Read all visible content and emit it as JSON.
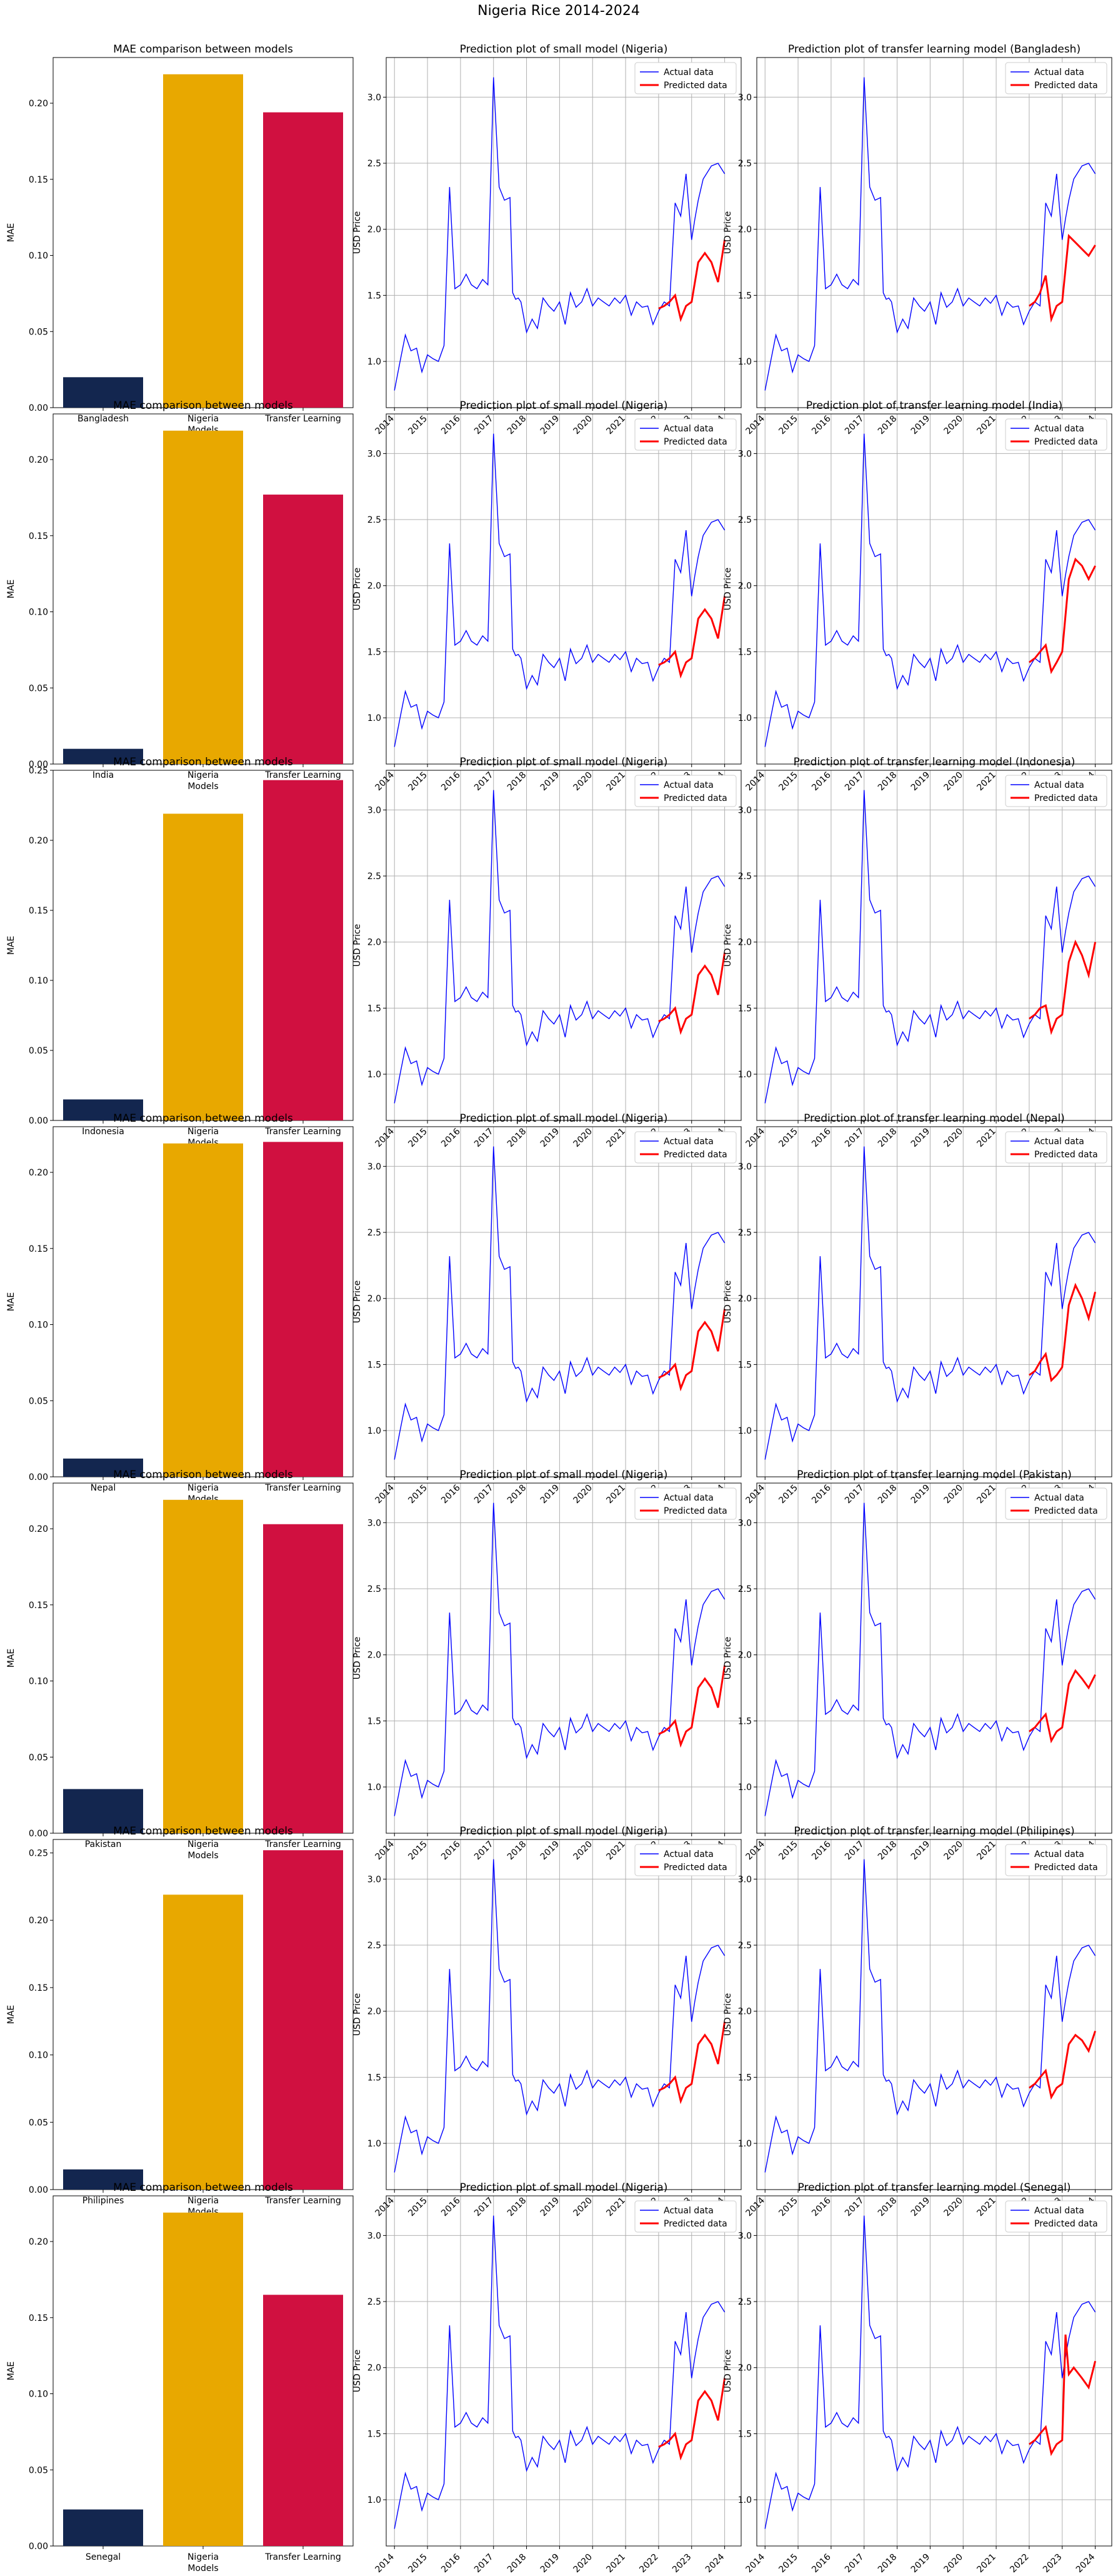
{
  "suptitle": "Nigeria Rice 2014-2024",
  "colors": {
    "bar_country": "#13264f",
    "bar_nigeria": "#e8a800",
    "bar_transfer": "#d01040",
    "actual": "#0000ff",
    "predicted": "#ff0000",
    "grid": "#b0b0b0"
  },
  "labels": {
    "mae_title": "MAE comparison between models",
    "mae_ylabel": "MAE",
    "mae_xlabel": "Models",
    "small_title": "Prediction plot of small model (Nigeria)",
    "tl_title_prefix": "Prediction plot of transfer learning model",
    "ylabel": "USD Price",
    "legend_actual": "Actual data",
    "legend_predicted": "Predicted data"
  },
  "chart_data": {
    "type": "line",
    "years": [
      "2014",
      "2015",
      "2016",
      "2017",
      "2018",
      "2019",
      "2020",
      "2021",
      "2022",
      "2023",
      "2024"
    ],
    "y_ticks": [
      "1.0",
      "1.5",
      "2.0",
      "2.5",
      "3.0"
    ],
    "ylim": [
      0.65,
      3.3
    ],
    "grid": true,
    "legend_position": "top-right",
    "actual": {
      "name": "Actual data",
      "x": [
        2014.0,
        2014.17,
        2014.33,
        2014.5,
        2014.67,
        2014.83,
        2015.0,
        2015.17,
        2015.33,
        2015.5,
        2015.67,
        2015.83,
        2016.0,
        2016.17,
        2016.33,
        2016.5,
        2016.67,
        2016.83,
        2017.0,
        2017.17,
        2017.33,
        2017.5,
        2017.58,
        2017.67,
        2017.75,
        2017.83,
        2018.0,
        2018.17,
        2018.33,
        2018.5,
        2018.67,
        2018.83,
        2019.0,
        2019.17,
        2019.33,
        2019.5,
        2019.67,
        2019.83,
        2020.0,
        2020.17,
        2020.33,
        2020.5,
        2020.67,
        2020.83,
        2021.0,
        2021.17,
        2021.33,
        2021.5,
        2021.67,
        2021.83,
        2022.0,
        2022.17,
        2022.33,
        2022.5,
        2022.67,
        2022.83,
        2023.0,
        2023.1,
        2023.2,
        2023.35,
        2023.6,
        2023.8,
        2024.0
      ],
      "y": [
        0.78,
        1.0,
        1.2,
        1.08,
        1.1,
        0.92,
        1.05,
        1.02,
        1.0,
        1.12,
        2.32,
        1.55,
        1.58,
        1.66,
        1.58,
        1.55,
        1.62,
        1.58,
        3.15,
        2.32,
        2.22,
        2.24,
        1.52,
        1.47,
        1.48,
        1.45,
        1.22,
        1.32,
        1.25,
        1.48,
        1.42,
        1.38,
        1.45,
        1.28,
        1.52,
        1.41,
        1.45,
        1.55,
        1.42,
        1.48,
        1.45,
        1.42,
        1.48,
        1.44,
        1.5,
        1.35,
        1.45,
        1.41,
        1.42,
        1.28,
        1.38,
        1.45,
        1.42,
        2.2,
        2.1,
        2.42,
        1.92,
        2.08,
        2.22,
        2.38,
        2.48,
        2.5,
        2.42
      ]
    },
    "mae_rows": [
      {
        "country": "Bangladesh",
        "tl_title": "Prediction plot of transfer learning model (Bangladesh)",
        "categories": [
          "Bangladesh",
          "Nigeria",
          "Transfer Learning"
        ],
        "values": [
          0.02,
          0.219,
          0.194
        ],
        "ylim": [
          0,
          0.23
        ],
        "yticks": [
          "0.00",
          "0.05",
          "0.10",
          "0.15",
          "0.20"
        ],
        "tl_pred": {
          "x": [
            2022.0,
            2022.17,
            2022.33,
            2022.5,
            2022.67,
            2022.83,
            2023.0,
            2023.2,
            2023.4,
            2023.6,
            2023.8,
            2024.0
          ],
          "y": [
            1.42,
            1.45,
            1.52,
            1.65,
            1.32,
            1.42,
            1.45,
            1.95,
            1.9,
            1.85,
            1.8,
            1.88
          ]
        }
      },
      {
        "country": "India",
        "tl_title": "Prediction plot of transfer learning model (India)",
        "categories": [
          "India",
          "Nigeria",
          "Transfer Learning"
        ],
        "values": [
          0.01,
          0.219,
          0.177
        ],
        "ylim": [
          0,
          0.23
        ],
        "yticks": [
          "0.00",
          "0.05",
          "0.10",
          "0.15",
          "0.20"
        ],
        "tl_pred": {
          "x": [
            2022.0,
            2022.17,
            2022.33,
            2022.5,
            2022.67,
            2022.83,
            2023.0,
            2023.2,
            2023.4,
            2023.6,
            2023.8,
            2024.0
          ],
          "y": [
            1.42,
            1.45,
            1.5,
            1.55,
            1.35,
            1.42,
            1.5,
            2.05,
            2.2,
            2.15,
            2.05,
            2.15
          ]
        }
      },
      {
        "country": "Indonesia",
        "tl_title": "Prediction plot of transfer learning model (Indonesia)",
        "categories": [
          "Indonesia",
          "Nigeria",
          "Transfer Learning"
        ],
        "values": [
          0.015,
          0.219,
          0.243
        ],
        "ylim": [
          0,
          0.25
        ],
        "yticks": [
          "0.00",
          "0.05",
          "0.10",
          "0.15",
          "0.20",
          "0.25"
        ],
        "tl_pred": {
          "x": [
            2022.0,
            2022.17,
            2022.33,
            2022.5,
            2022.67,
            2022.83,
            2023.0,
            2023.2,
            2023.4,
            2023.6,
            2023.8,
            2024.0
          ],
          "y": [
            1.42,
            1.45,
            1.5,
            1.52,
            1.32,
            1.42,
            1.45,
            1.85,
            2.0,
            1.9,
            1.75,
            2.0
          ]
        }
      },
      {
        "country": "Nepal",
        "tl_title": "Prediction plot of transfer learning model (Nepal)",
        "categories": [
          "Nepal",
          "Nigeria",
          "Transfer Learning"
        ],
        "values": [
          0.012,
          0.219,
          0.22
        ],
        "ylim": [
          0,
          0.23
        ],
        "yticks": [
          "0.00",
          "0.05",
          "0.10",
          "0.15",
          "0.20"
        ],
        "tl_pred": {
          "x": [
            2022.0,
            2022.17,
            2022.33,
            2022.5,
            2022.67,
            2022.83,
            2023.0,
            2023.2,
            2023.4,
            2023.6,
            2023.8,
            2024.0
          ],
          "y": [
            1.42,
            1.45,
            1.52,
            1.58,
            1.38,
            1.42,
            1.48,
            1.95,
            2.1,
            2.0,
            1.85,
            2.05
          ]
        }
      },
      {
        "country": "Pakistan",
        "tl_title": "Prediction plot of transfer learning model (Pakistan)",
        "categories": [
          "Pakistan",
          "Nigeria",
          "Transfer Learning"
        ],
        "values": [
          0.029,
          0.219,
          0.203
        ],
        "ylim": [
          0,
          0.23
        ],
        "yticks": [
          "0.00",
          "0.05",
          "0.10",
          "0.15",
          "0.20"
        ],
        "tl_pred": {
          "x": [
            2022.0,
            2022.17,
            2022.33,
            2022.5,
            2022.67,
            2022.83,
            2023.0,
            2023.2,
            2023.4,
            2023.6,
            2023.8,
            2024.0
          ],
          "y": [
            1.42,
            1.45,
            1.5,
            1.55,
            1.35,
            1.42,
            1.45,
            1.78,
            1.88,
            1.82,
            1.75,
            1.85
          ]
        }
      },
      {
        "country": "Philipines",
        "tl_title": "Prediction plot of transfer learning model (Philipines)",
        "categories": [
          "Philipines",
          "Nigeria",
          "Transfer Learning"
        ],
        "values": [
          0.015,
          0.219,
          0.252
        ],
        "ylim": [
          0,
          0.26
        ],
        "yticks": [
          "0.00",
          "0.05",
          "0.10",
          "0.15",
          "0.20",
          "0.25"
        ],
        "tl_pred": {
          "x": [
            2022.0,
            2022.17,
            2022.33,
            2022.5,
            2022.67,
            2022.83,
            2023.0,
            2023.2,
            2023.4,
            2023.6,
            2023.8,
            2024.0
          ],
          "y": [
            1.42,
            1.45,
            1.5,
            1.55,
            1.35,
            1.42,
            1.45,
            1.75,
            1.82,
            1.78,
            1.7,
            1.85
          ]
        }
      },
      {
        "country": "Senegal",
        "tl_title": "Prediction plot of transfer learning model (Senegal)",
        "categories": [
          "Senegal",
          "Nigeria",
          "Transfer Learning"
        ],
        "values": [
          0.024,
          0.219,
          0.165
        ],
        "ylim": [
          0,
          0.23
        ],
        "yticks": [
          "0.00",
          "0.05",
          "0.10",
          "0.15",
          "0.20"
        ],
        "tl_pred": {
          "x": [
            2022.0,
            2022.17,
            2022.33,
            2022.5,
            2022.67,
            2022.83,
            2023.0,
            2023.1,
            2023.2,
            2023.35,
            2023.6,
            2023.8,
            2024.0
          ],
          "y": [
            1.42,
            1.45,
            1.5,
            1.55,
            1.35,
            1.42,
            1.45,
            2.25,
            1.95,
            2.0,
            1.92,
            1.85,
            2.05
          ]
        }
      }
    ],
    "small_pred": {
      "x": [
        2022.0,
        2022.17,
        2022.33,
        2022.5,
        2022.67,
        2022.83,
        2023.0,
        2023.2,
        2023.4,
        2023.6,
        2023.8,
        2024.0
      ],
      "y": [
        1.4,
        1.42,
        1.45,
        1.5,
        1.32,
        1.42,
        1.45,
        1.75,
        1.82,
        1.75,
        1.6,
        1.92
      ]
    }
  }
}
